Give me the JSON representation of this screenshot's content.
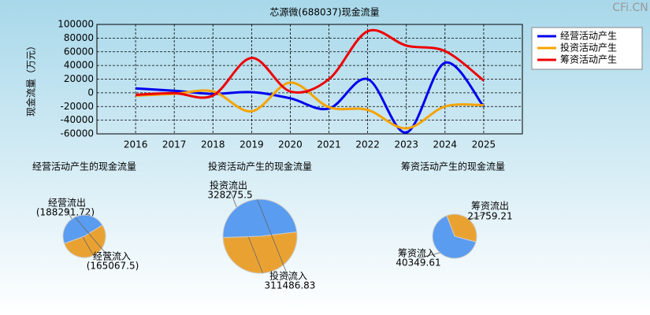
{
  "chart_data": [
    {
      "type": "line",
      "title": "芯源微(688037)现金流量",
      "y_label": "现金流量（万元）",
      "categories": [
        "2016",
        "2017",
        "2018",
        "2019",
        "2020",
        "2021",
        "2022",
        "2023",
        "2024",
        "2025"
      ],
      "series": [
        {
          "name": "经营活动产生",
          "color": "#0000ee",
          "values": [
            6500,
            3000,
            -1500,
            1000,
            -8000,
            -23000,
            20000,
            -58000,
            44000,
            -20000
          ]
        },
        {
          "name": "投资活动产生",
          "color": "#f5a300",
          "values": [
            -4000,
            -1500,
            2000,
            -27000,
            15000,
            -21000,
            -25000,
            -52000,
            -20000,
            -18000
          ]
        },
        {
          "name": "筹资活动产生",
          "color": "#ee0000",
          "values": [
            -3000,
            -500,
            -4000,
            51000,
            2000,
            20000,
            90000,
            69000,
            61000,
            18000
          ]
        }
      ],
      "ylim": [
        -60000,
        100000
      ],
      "yticks": [
        -60000,
        -40000,
        -20000,
        0,
        20000,
        40000,
        60000,
        80000,
        100000
      ],
      "grid": true,
      "legend": "right",
      "watermark": "CFi.CN"
    },
    {
      "type": "pie",
      "title": "经营活动产生的现金流量",
      "categories": [
        "经营流出",
        "经营流入"
      ],
      "values": [
        188291.72,
        165067.5
      ],
      "value_labels": [
        "(188291.72)",
        "(165067.5)"
      ],
      "colors": [
        "#e9a232",
        "#5a9cf0"
      ]
    },
    {
      "type": "pie",
      "title": "投资活动产生的现金流量",
      "categories": [
        "投资流出",
        "投资流入"
      ],
      "values": [
        328275.5,
        311486.83
      ],
      "colors": [
        "#e9a232",
        "#5a9cf0"
      ]
    },
    {
      "type": "pie",
      "title": "筹资活动产生的现金流量",
      "categories": [
        "筹资流出",
        "筹资流入"
      ],
      "values": [
        21759.21,
        40349.61
      ],
      "colors": [
        "#e9a232",
        "#5a9cf0"
      ]
    }
  ]
}
